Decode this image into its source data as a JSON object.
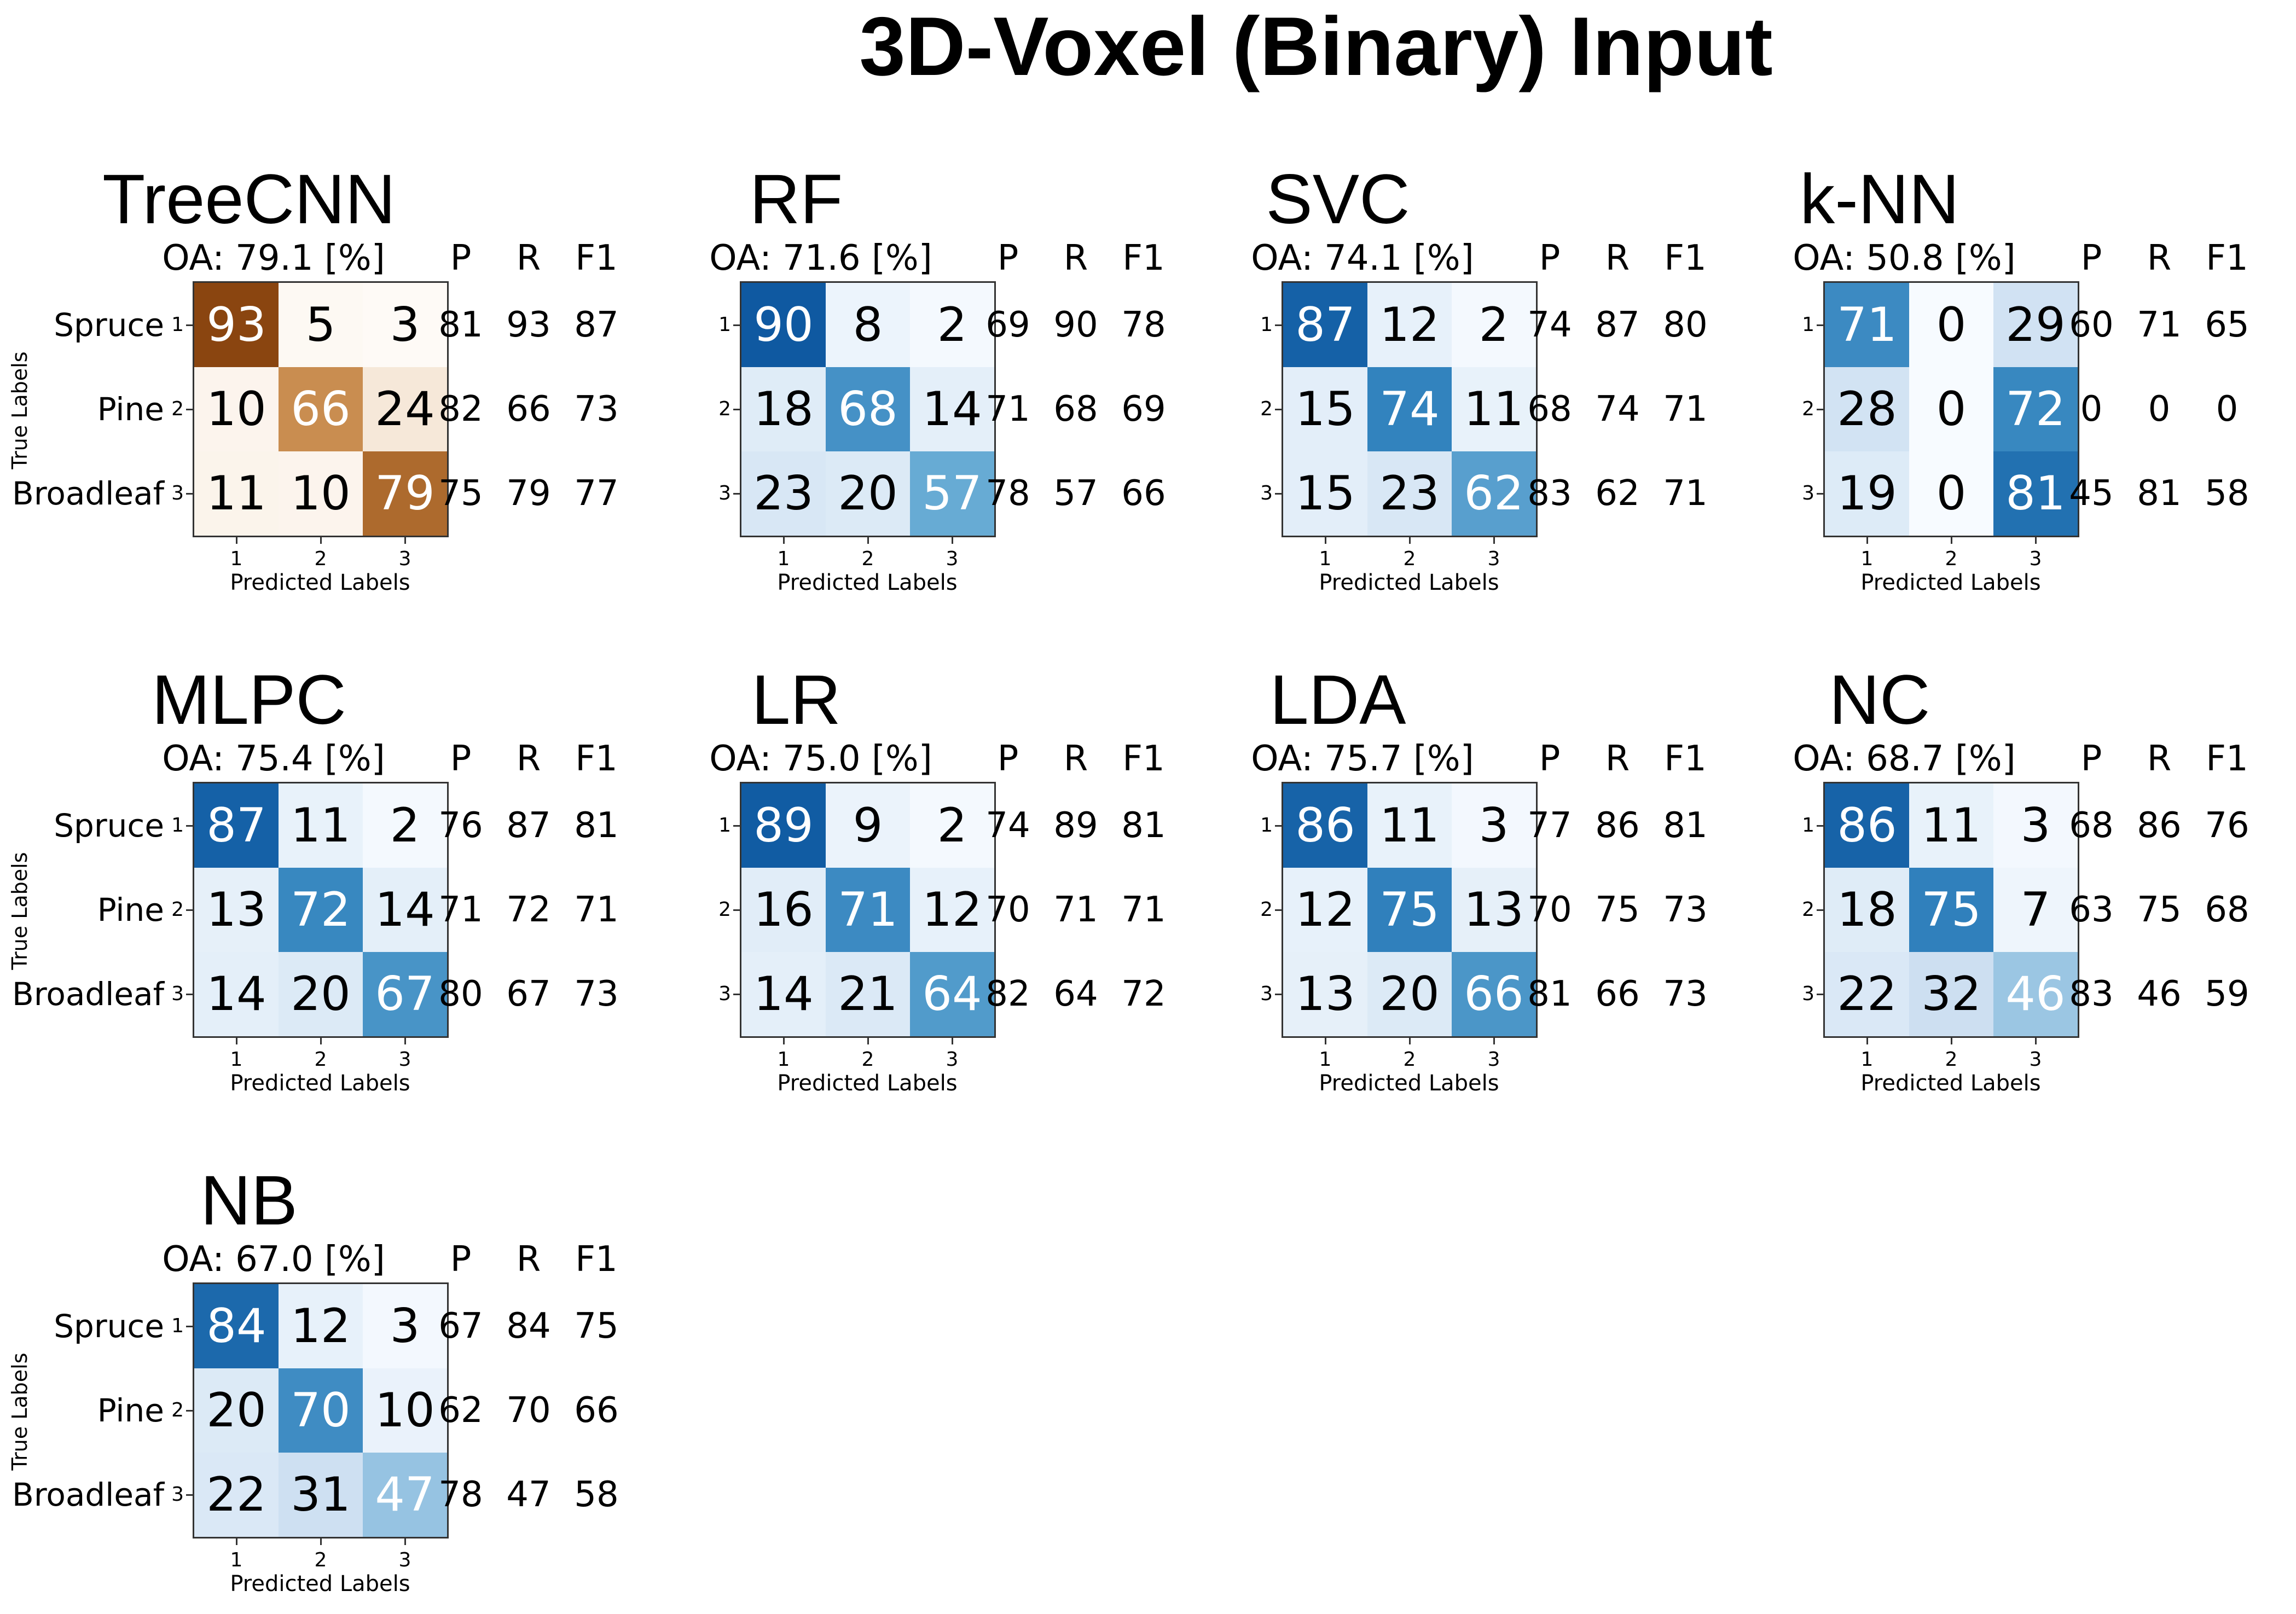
{
  "figure": {
    "title": "3D-Voxel (Binary) Input",
    "ylabel": "True Labels",
    "xlabel": "Predicted Labels",
    "metric_headers": [
      "P",
      "R",
      "F1"
    ],
    "tick_labels": [
      "1",
      "2",
      "3"
    ],
    "class_names": [
      "Spruce",
      "Pine",
      "Broadleaf"
    ]
  },
  "colors": {
    "brown_scale": "#8a4510",
    "blue_scale": "#08519c",
    "text_dark": "#000000",
    "text_light": "#ffffff"
  },
  "chart_data": [
    {
      "type": "heatmap",
      "title": "TreeCNN",
      "oa_label": "OA: 79.1 [%]",
      "oa": 79.1,
      "colormap": "brown",
      "class_names_shown": true,
      "ylabel_shown": true,
      "matrix": [
        [
          93,
          5,
          3
        ],
        [
          10,
          66,
          24
        ],
        [
          11,
          10,
          79
        ]
      ],
      "metrics": [
        [
          81,
          93,
          87
        ],
        [
          82,
          66,
          73
        ],
        [
          75,
          79,
          77
        ]
      ]
    },
    {
      "type": "heatmap",
      "title": "RF",
      "oa_label": "OA: 71.6 [%]",
      "oa": 71.6,
      "colormap": "blue",
      "class_names_shown": false,
      "ylabel_shown": false,
      "matrix": [
        [
          90,
          8,
          2
        ],
        [
          18,
          68,
          14
        ],
        [
          23,
          20,
          57
        ]
      ],
      "metrics": [
        [
          69,
          90,
          78
        ],
        [
          71,
          68,
          69
        ],
        [
          78,
          57,
          66
        ]
      ]
    },
    {
      "type": "heatmap",
      "title": "SVC",
      "oa_label": "OA: 74.1 [%]",
      "oa": 74.1,
      "colormap": "blue",
      "class_names_shown": false,
      "ylabel_shown": false,
      "matrix": [
        [
          87,
          12,
          2
        ],
        [
          15,
          74,
          11
        ],
        [
          15,
          23,
          62
        ]
      ],
      "metrics": [
        [
          74,
          87,
          80
        ],
        [
          68,
          74,
          71
        ],
        [
          83,
          62,
          71
        ]
      ]
    },
    {
      "type": "heatmap",
      "title": "k-NN",
      "oa_label": "OA: 50.8 [%]",
      "oa": 50.8,
      "colormap": "blue",
      "class_names_shown": false,
      "ylabel_shown": false,
      "matrix": [
        [
          71,
          0,
          29
        ],
        [
          28,
          0,
          72
        ],
        [
          19,
          0,
          81
        ]
      ],
      "metrics": [
        [
          60,
          71,
          65
        ],
        [
          0,
          0,
          0
        ],
        [
          45,
          81,
          58
        ]
      ]
    },
    {
      "type": "heatmap",
      "title": "MLPC",
      "oa_label": "OA: 75.4 [%]",
      "oa": 75.4,
      "colormap": "blue",
      "class_names_shown": true,
      "ylabel_shown": true,
      "matrix": [
        [
          87,
          11,
          2
        ],
        [
          13,
          72,
          14
        ],
        [
          14,
          20,
          67
        ]
      ],
      "metrics": [
        [
          76,
          87,
          81
        ],
        [
          71,
          72,
          71
        ],
        [
          80,
          67,
          73
        ]
      ]
    },
    {
      "type": "heatmap",
      "title": "LR",
      "oa_label": "OA: 75.0 [%]",
      "oa": 75.0,
      "colormap": "blue",
      "class_names_shown": false,
      "ylabel_shown": false,
      "matrix": [
        [
          89,
          9,
          2
        ],
        [
          16,
          71,
          12
        ],
        [
          14,
          21,
          64
        ]
      ],
      "metrics": [
        [
          74,
          89,
          81
        ],
        [
          70,
          71,
          71
        ],
        [
          82,
          64,
          72
        ]
      ]
    },
    {
      "type": "heatmap",
      "title": "LDA",
      "oa_label": "OA: 75.7 [%]",
      "oa": 75.7,
      "colormap": "blue",
      "class_names_shown": false,
      "ylabel_shown": false,
      "matrix": [
        [
          86,
          11,
          3
        ],
        [
          12,
          75,
          13
        ],
        [
          13,
          20,
          66
        ]
      ],
      "metrics": [
        [
          77,
          86,
          81
        ],
        [
          70,
          75,
          73
        ],
        [
          81,
          66,
          73
        ]
      ]
    },
    {
      "type": "heatmap",
      "title": "NC",
      "oa_label": "OA: 68.7 [%]",
      "oa": 68.7,
      "colormap": "blue",
      "class_names_shown": false,
      "ylabel_shown": false,
      "matrix": [
        [
          86,
          11,
          3
        ],
        [
          18,
          75,
          7
        ],
        [
          22,
          32,
          46
        ]
      ],
      "metrics": [
        [
          68,
          86,
          76
        ],
        [
          63,
          75,
          68
        ],
        [
          83,
          46,
          59
        ]
      ]
    },
    {
      "type": "heatmap",
      "title": "NB",
      "oa_label": "OA: 67.0 [%]",
      "oa": 67.0,
      "colormap": "blue",
      "class_names_shown": true,
      "ylabel_shown": true,
      "matrix": [
        [
          84,
          12,
          3
        ],
        [
          20,
          70,
          10
        ],
        [
          22,
          31,
          47
        ]
      ],
      "metrics": [
        [
          67,
          84,
          75
        ],
        [
          62,
          70,
          66
        ],
        [
          78,
          47,
          58
        ]
      ]
    }
  ]
}
